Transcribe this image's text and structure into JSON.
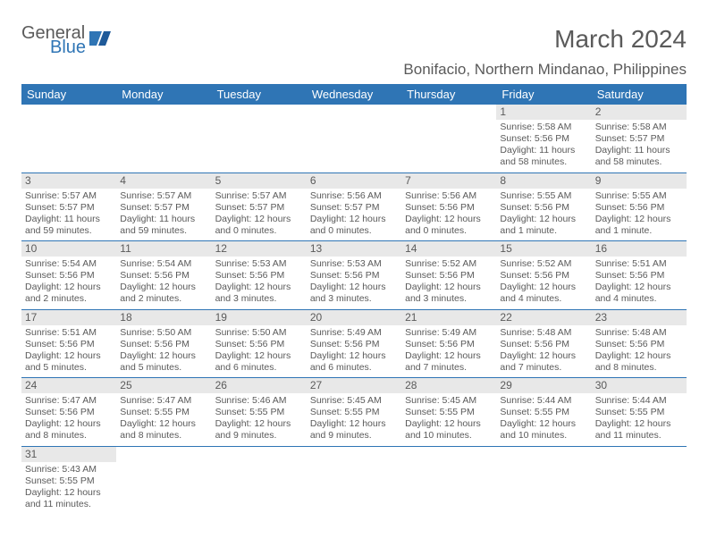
{
  "logo": {
    "part1": "General",
    "part2": "Blue"
  },
  "title": "March 2024",
  "location": "Bonifacio, Northern Mindanao, Philippines",
  "day_names": [
    "Sunday",
    "Monday",
    "Tuesday",
    "Wednesday",
    "Thursday",
    "Friday",
    "Saturday"
  ],
  "colors": {
    "header_bg": "#2f75b5",
    "header_text": "#ffffff",
    "daynum_bg": "#e8e8e8",
    "text": "#5a5a5a",
    "border": "#2f75b5"
  },
  "weeks": [
    [
      null,
      null,
      null,
      null,
      null,
      {
        "n": "1",
        "sr": "Sunrise: 5:58 AM",
        "ss": "Sunset: 5:56 PM",
        "dl": "Daylight: 11 hours and 58 minutes."
      },
      {
        "n": "2",
        "sr": "Sunrise: 5:58 AM",
        "ss": "Sunset: 5:57 PM",
        "dl": "Daylight: 11 hours and 58 minutes."
      }
    ],
    [
      {
        "n": "3",
        "sr": "Sunrise: 5:57 AM",
        "ss": "Sunset: 5:57 PM",
        "dl": "Daylight: 11 hours and 59 minutes."
      },
      {
        "n": "4",
        "sr": "Sunrise: 5:57 AM",
        "ss": "Sunset: 5:57 PM",
        "dl": "Daylight: 11 hours and 59 minutes."
      },
      {
        "n": "5",
        "sr": "Sunrise: 5:57 AM",
        "ss": "Sunset: 5:57 PM",
        "dl": "Daylight: 12 hours and 0 minutes."
      },
      {
        "n": "6",
        "sr": "Sunrise: 5:56 AM",
        "ss": "Sunset: 5:57 PM",
        "dl": "Daylight: 12 hours and 0 minutes."
      },
      {
        "n": "7",
        "sr": "Sunrise: 5:56 AM",
        "ss": "Sunset: 5:56 PM",
        "dl": "Daylight: 12 hours and 0 minutes."
      },
      {
        "n": "8",
        "sr": "Sunrise: 5:55 AM",
        "ss": "Sunset: 5:56 PM",
        "dl": "Daylight: 12 hours and 1 minute."
      },
      {
        "n": "9",
        "sr": "Sunrise: 5:55 AM",
        "ss": "Sunset: 5:56 PM",
        "dl": "Daylight: 12 hours and 1 minute."
      }
    ],
    [
      {
        "n": "10",
        "sr": "Sunrise: 5:54 AM",
        "ss": "Sunset: 5:56 PM",
        "dl": "Daylight: 12 hours and 2 minutes."
      },
      {
        "n": "11",
        "sr": "Sunrise: 5:54 AM",
        "ss": "Sunset: 5:56 PM",
        "dl": "Daylight: 12 hours and 2 minutes."
      },
      {
        "n": "12",
        "sr": "Sunrise: 5:53 AM",
        "ss": "Sunset: 5:56 PM",
        "dl": "Daylight: 12 hours and 3 minutes."
      },
      {
        "n": "13",
        "sr": "Sunrise: 5:53 AM",
        "ss": "Sunset: 5:56 PM",
        "dl": "Daylight: 12 hours and 3 minutes."
      },
      {
        "n": "14",
        "sr": "Sunrise: 5:52 AM",
        "ss": "Sunset: 5:56 PM",
        "dl": "Daylight: 12 hours and 3 minutes."
      },
      {
        "n": "15",
        "sr": "Sunrise: 5:52 AM",
        "ss": "Sunset: 5:56 PM",
        "dl": "Daylight: 12 hours and 4 minutes."
      },
      {
        "n": "16",
        "sr": "Sunrise: 5:51 AM",
        "ss": "Sunset: 5:56 PM",
        "dl": "Daylight: 12 hours and 4 minutes."
      }
    ],
    [
      {
        "n": "17",
        "sr": "Sunrise: 5:51 AM",
        "ss": "Sunset: 5:56 PM",
        "dl": "Daylight: 12 hours and 5 minutes."
      },
      {
        "n": "18",
        "sr": "Sunrise: 5:50 AM",
        "ss": "Sunset: 5:56 PM",
        "dl": "Daylight: 12 hours and 5 minutes."
      },
      {
        "n": "19",
        "sr": "Sunrise: 5:50 AM",
        "ss": "Sunset: 5:56 PM",
        "dl": "Daylight: 12 hours and 6 minutes."
      },
      {
        "n": "20",
        "sr": "Sunrise: 5:49 AM",
        "ss": "Sunset: 5:56 PM",
        "dl": "Daylight: 12 hours and 6 minutes."
      },
      {
        "n": "21",
        "sr": "Sunrise: 5:49 AM",
        "ss": "Sunset: 5:56 PM",
        "dl": "Daylight: 12 hours and 7 minutes."
      },
      {
        "n": "22",
        "sr": "Sunrise: 5:48 AM",
        "ss": "Sunset: 5:56 PM",
        "dl": "Daylight: 12 hours and 7 minutes."
      },
      {
        "n": "23",
        "sr": "Sunrise: 5:48 AM",
        "ss": "Sunset: 5:56 PM",
        "dl": "Daylight: 12 hours and 8 minutes."
      }
    ],
    [
      {
        "n": "24",
        "sr": "Sunrise: 5:47 AM",
        "ss": "Sunset: 5:56 PM",
        "dl": "Daylight: 12 hours and 8 minutes."
      },
      {
        "n": "25",
        "sr": "Sunrise: 5:47 AM",
        "ss": "Sunset: 5:55 PM",
        "dl": "Daylight: 12 hours and 8 minutes."
      },
      {
        "n": "26",
        "sr": "Sunrise: 5:46 AM",
        "ss": "Sunset: 5:55 PM",
        "dl": "Daylight: 12 hours and 9 minutes."
      },
      {
        "n": "27",
        "sr": "Sunrise: 5:45 AM",
        "ss": "Sunset: 5:55 PM",
        "dl": "Daylight: 12 hours and 9 minutes."
      },
      {
        "n": "28",
        "sr": "Sunrise: 5:45 AM",
        "ss": "Sunset: 5:55 PM",
        "dl": "Daylight: 12 hours and 10 minutes."
      },
      {
        "n": "29",
        "sr": "Sunrise: 5:44 AM",
        "ss": "Sunset: 5:55 PM",
        "dl": "Daylight: 12 hours and 10 minutes."
      },
      {
        "n": "30",
        "sr": "Sunrise: 5:44 AM",
        "ss": "Sunset: 5:55 PM",
        "dl": "Daylight: 12 hours and 11 minutes."
      }
    ],
    [
      {
        "n": "31",
        "sr": "Sunrise: 5:43 AM",
        "ss": "Sunset: 5:55 PM",
        "dl": "Daylight: 12 hours and 11 minutes."
      },
      null,
      null,
      null,
      null,
      null,
      null
    ]
  ]
}
